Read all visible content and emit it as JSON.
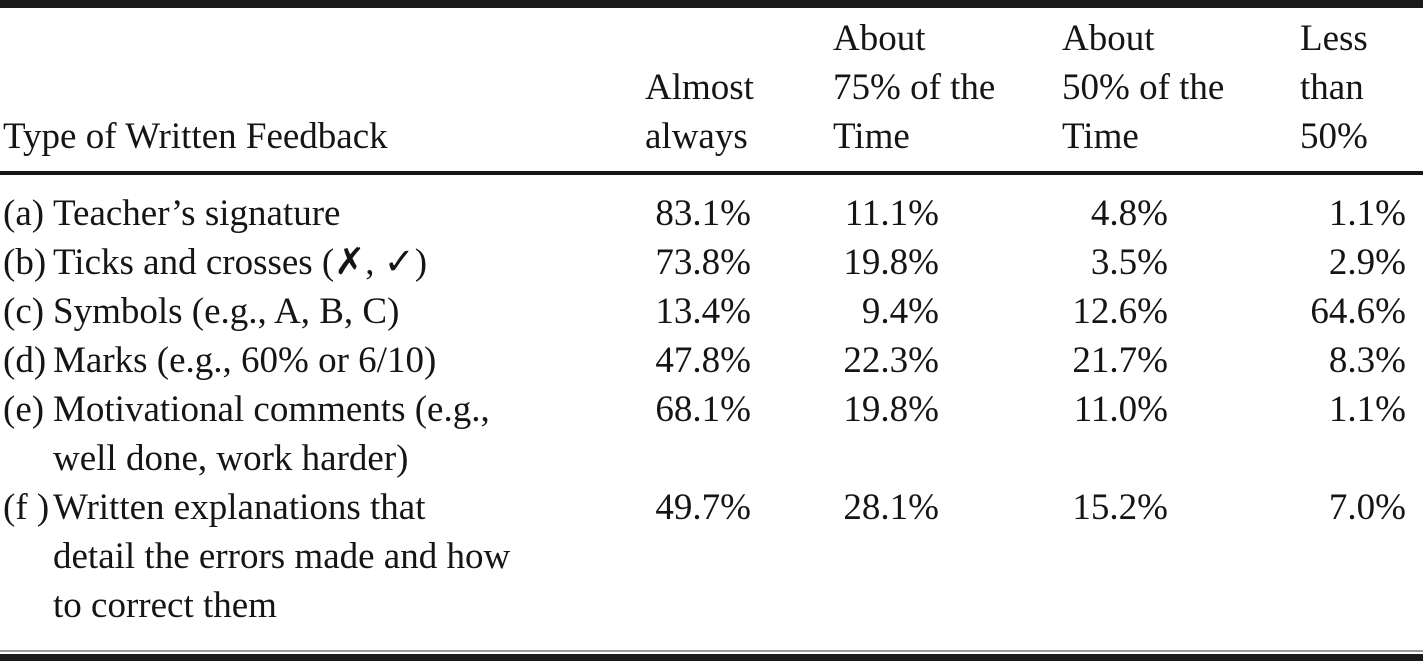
{
  "table": {
    "col1_header": "Type of Written Feedback",
    "headers": [
      "Almost\nalways",
      "About\n75% of the\nTime",
      "About\n50% of the\nTime",
      "Less\nthan\n50%"
    ],
    "rows": [
      {
        "label": "(a)",
        "text": "Teacher’s signature",
        "values": [
          "83.1%",
          "11.1%",
          "4.8%",
          "1.1%"
        ]
      },
      {
        "label": "(b)",
        "text": "Ticks and crosses (✗, ✓)",
        "values": [
          "73.8%",
          "19.8%",
          "3.5%",
          "2.9%"
        ]
      },
      {
        "label": "(c)",
        "text": "Symbols (e.g., A, B, C)",
        "values": [
          "13.4%",
          "9.4%",
          "12.6%",
          "64.6%"
        ]
      },
      {
        "label": "(d)",
        "text": "Marks (e.g., 60% or 6/10)",
        "values": [
          "47.8%",
          "22.3%",
          "21.7%",
          "8.3%"
        ]
      },
      {
        "label": "(e)",
        "text": "Motivational comments (e.g.,\nwell done, work harder)",
        "values": [
          "68.1%",
          "19.8%",
          "11.0%",
          "1.1%"
        ]
      },
      {
        "label": "(f )",
        "text": "Written explanations that\ndetail the errors made and how\nto correct them",
        "values": [
          "49.7%",
          "28.1%",
          "15.2%",
          "7.0%"
        ]
      }
    ]
  },
  "chart_data": {
    "type": "table",
    "title": "Type of Written Feedback",
    "columns": [
      "Almost always",
      "About 75% of the Time",
      "About 50% of the Time",
      "Less than 50%"
    ],
    "row_labels": [
      "(a) Teacher’s signature",
      "(b) Ticks and crosses (✗, ✓)",
      "(c) Symbols (e.g., A, B, C)",
      "(d) Marks (e.g., 60% or 6/10)",
      "(e) Motivational comments (e.g., well done, work harder)",
      "(f) Written explanations that detail the errors made and how to correct them"
    ],
    "values_percent": [
      [
        83.1,
        11.1,
        4.8,
        1.1
      ],
      [
        73.8,
        19.8,
        3.5,
        2.9
      ],
      [
        13.4,
        9.4,
        12.6,
        64.6
      ],
      [
        47.8,
        22.3,
        21.7,
        8.3
      ],
      [
        68.1,
        19.8,
        11.0,
        1.1
      ],
      [
        49.7,
        28.1,
        15.2,
        7.0
      ]
    ]
  },
  "colors": {
    "text": "#151515",
    "rule": "#1b1b1b",
    "thin_rule": "#9b9b9b",
    "background": "#ffffff"
  }
}
